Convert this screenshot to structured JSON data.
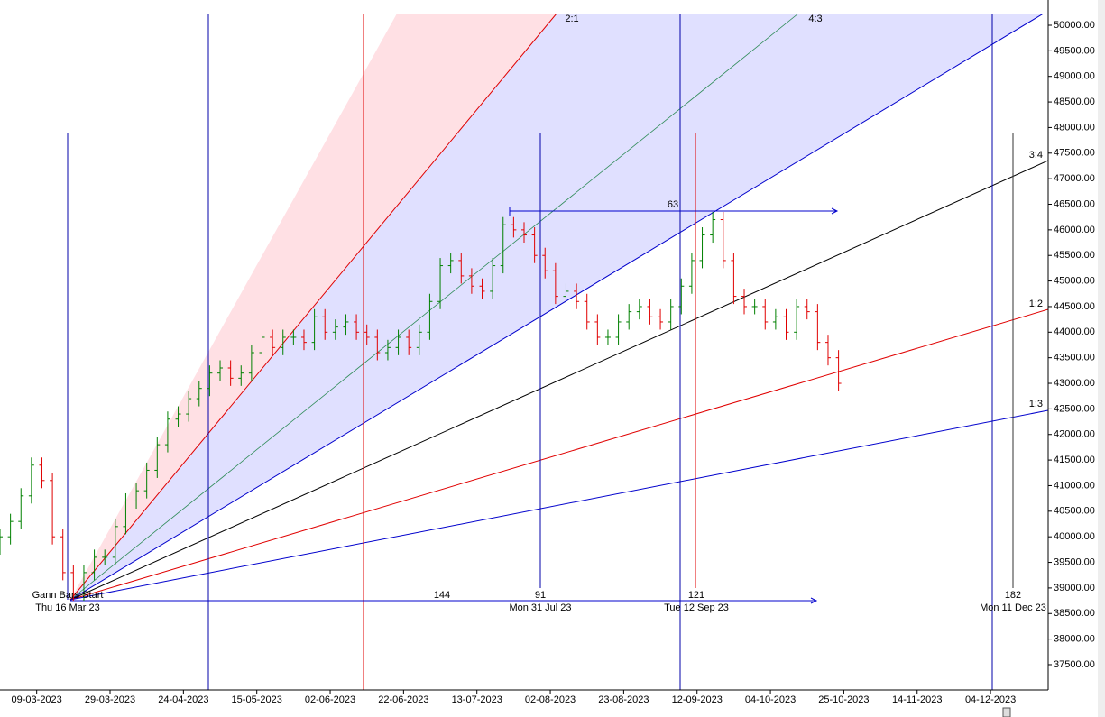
{
  "chart_data": {
    "type": "ohlc",
    "xlim": [
      0,
      200
    ],
    "ylim": [
      37006,
      50229
    ],
    "xticks": [
      {
        "value": 7,
        "label": "09-03-2023"
      },
      {
        "value": 21,
        "label": "29-03-2023"
      },
      {
        "value": 35,
        "label": "24-04-2023"
      },
      {
        "value": 49,
        "label": "15-05-2023"
      },
      {
        "value": 63,
        "label": "02-06-2023"
      },
      {
        "value": 77,
        "label": "22-06-2023"
      },
      {
        "value": 91,
        "label": "13-07-2023"
      },
      {
        "value": 105,
        "label": "02-08-2023"
      },
      {
        "value": 119,
        "label": "23-08-2023"
      },
      {
        "value": 133,
        "label": "12-09-2023"
      },
      {
        "value": 147,
        "label": "04-10-2023"
      },
      {
        "value": 161,
        "label": "25-10-2023"
      },
      {
        "value": 175,
        "label": "14-11-2023"
      },
      {
        "value": 189,
        "label": "04-12-2023"
      }
    ],
    "yticks": [
      {
        "value": 37500,
        "label": "37500.00"
      },
      {
        "value": 38000,
        "label": "38000.00"
      },
      {
        "value": 38500,
        "label": "38500.00"
      },
      {
        "value": 39000,
        "label": "39000.00"
      },
      {
        "value": 39500,
        "label": "39500.00"
      },
      {
        "value": 40000,
        "label": "40000.00"
      },
      {
        "value": 40500,
        "label": "40500.00"
      },
      {
        "value": 41000,
        "label": "41000.00"
      },
      {
        "value": 41500,
        "label": "41500.00"
      },
      {
        "value": 42000,
        "label": "42000.00"
      },
      {
        "value": 42500,
        "label": "42500.00"
      },
      {
        "value": 43000,
        "label": "43000.00"
      },
      {
        "value": 43500,
        "label": "43500.00"
      },
      {
        "value": 44000,
        "label": "44000.00"
      },
      {
        "value": 44500,
        "label": "44500.00"
      },
      {
        "value": 45000,
        "label": "45000.00"
      },
      {
        "value": 45500,
        "label": "45500.00"
      },
      {
        "value": 46000,
        "label": "46000.00"
      },
      {
        "value": 46500,
        "label": "46500.00"
      },
      {
        "value": 47000,
        "label": "47000.00"
      },
      {
        "value": 47500,
        "label": "47500.00"
      },
      {
        "value": 48000,
        "label": "48000.00"
      },
      {
        "value": 48500,
        "label": "48500.00"
      },
      {
        "value": 49000,
        "label": "49000.00"
      },
      {
        "value": 49500,
        "label": "49500.00"
      },
      {
        "value": 50000,
        "label": "50000.00"
      }
    ],
    "up_color": "#008000",
    "down_color": "#e00000",
    "x": [
      0,
      2,
      4,
      6,
      8,
      10,
      12,
      14,
      16,
      18,
      20,
      22,
      24,
      26,
      28,
      30,
      32,
      34,
      36,
      38,
      40,
      42,
      44,
      46,
      48,
      50,
      52,
      54,
      56,
      58,
      60,
      62,
      64,
      66,
      68,
      70,
      72,
      74,
      76,
      78,
      80,
      82,
      84,
      86,
      88,
      90,
      92,
      94,
      96,
      98,
      100,
      102,
      104,
      106,
      108,
      110,
      112,
      114,
      116,
      118,
      120,
      122,
      124,
      126,
      128,
      130,
      132,
      134,
      136,
      138,
      140,
      142,
      144,
      146,
      148,
      150,
      152,
      154,
      156,
      158,
      160
    ],
    "open": [
      39800,
      40000,
      40300,
      40800,
      41400,
      41100,
      40000,
      39300,
      38900,
      39300,
      39600,
      39600,
      40200,
      40700,
      40900,
      41300,
      41800,
      42300,
      42400,
      42700,
      42900,
      43200,
      43300,
      43100,
      43200,
      43600,
      43900,
      43700,
      43900,
      43900,
      43800,
      44300,
      44000,
      44100,
      44200,
      44000,
      43900,
      43600,
      43700,
      43900,
      43700,
      44000,
      44600,
      45300,
      45400,
      45100,
      44900,
      44800,
      45300,
      46100,
      46000,
      45900,
      45500,
      45200,
      44700,
      44800,
      44600,
      44200,
      43900,
      43900,
      44200,
      44400,
      44500,
      44300,
      44200,
      44500,
      44900,
      45400,
      45900,
      46200,
      45400,
      44700,
      44500,
      44500,
      44200,
      44300,
      44000,
      44500,
      44400,
      43800,
      43500
    ],
    "high": [
      40150,
      40450,
      40950,
      41550,
      41550,
      41250,
      40150,
      39450,
      39450,
      39750,
      39750,
      40350,
      40850,
      41050,
      41450,
      41950,
      42450,
      42550,
      42850,
      43050,
      43350,
      43450,
      43450,
      43350,
      43750,
      44050,
      44050,
      44050,
      44050,
      44050,
      44450,
      44450,
      44250,
      44350,
      44350,
      44150,
      44050,
      43850,
      44050,
      44050,
      44150,
      44750,
      45450,
      45550,
      45550,
      45250,
      45050,
      45450,
      46250,
      46250,
      46150,
      46050,
      45650,
      45350,
      44950,
      44950,
      44750,
      44350,
      44050,
      44350,
      44550,
      44650,
      44650,
      44450,
      44650,
      45050,
      45550,
      46050,
      46350,
      46350,
      45550,
      44850,
      44650,
      44650,
      44450,
      44450,
      44650,
      44650,
      44550,
      43950,
      43650
    ],
    "low": [
      39650,
      39850,
      40150,
      40650,
      40950,
      39850,
      39150,
      38750,
      38750,
      39150,
      39450,
      39450,
      40050,
      40550,
      40750,
      41150,
      41650,
      42150,
      42250,
      42550,
      42750,
      43050,
      42950,
      42950,
      43050,
      43450,
      43550,
      43550,
      43750,
      43650,
      43650,
      43850,
      43850,
      43950,
      43850,
      43750,
      43450,
      43450,
      43550,
      43550,
      43550,
      43850,
      44450,
      45150,
      44950,
      44750,
      44650,
      44650,
      45150,
      45850,
      45750,
      45350,
      45050,
      44550,
      44550,
      44450,
      44050,
      43750,
      43750,
      43750,
      44050,
      44250,
      44150,
      44050,
      44050,
      44350,
      44750,
      45250,
      45750,
      45250,
      44550,
      44350,
      44350,
      44050,
      44050,
      43850,
      43850,
      44250,
      43650,
      43350,
      42850
    ],
    "close": [
      40000,
      40300,
      40800,
      41400,
      41100,
      40000,
      39300,
      38900,
      39300,
      39600,
      39600,
      40200,
      40700,
      40900,
      41300,
      41800,
      42300,
      42400,
      42700,
      42900,
      43200,
      43300,
      43100,
      43200,
      43600,
      43900,
      43700,
      43900,
      43900,
      43800,
      44300,
      44000,
      44100,
      44200,
      44000,
      43900,
      43600,
      43700,
      43900,
      43700,
      44000,
      44600,
      45300,
      45400,
      45100,
      44900,
      44800,
      45300,
      46100,
      46000,
      45900,
      45500,
      45200,
      44700,
      44800,
      44600,
      44200,
      43900,
      43900,
      44200,
      44400,
      44500,
      44300,
      44200,
      44500,
      44900,
      45400,
      45900,
      46200,
      45400,
      44700,
      44500,
      44500,
      44200,
      44300,
      44000,
      44500,
      44400,
      43800,
      43500,
      43000
    ],
    "annotations": {
      "gann_start": "Gann Bars Start",
      "start_date": "Thu 16 Mar 23",
      "fan_2_1": "2:1",
      "fan_4_3": "4:3",
      "fan_3_4": "3:4",
      "fan_1_2": "1:2",
      "fan_1_3": "1:3",
      "count_144": "144",
      "count_91": "91",
      "date_91": "Mon 31 Jul 23",
      "count_121": "121",
      "date_121": "Tue 12 Sep 23",
      "count_182": "182",
      "date_182": "Mon 11 Dec 23",
      "count_63": "63"
    }
  }
}
